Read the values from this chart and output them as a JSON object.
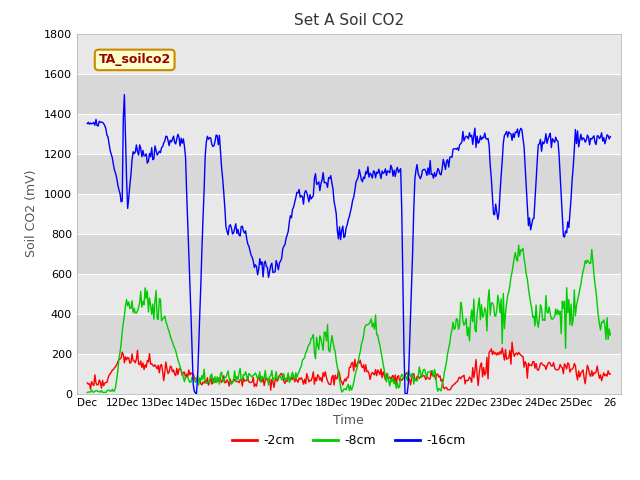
{
  "title": "Set A Soil CO2",
  "ylabel": "Soil CO2 (mV)",
  "xlabel": "Time",
  "legend_label": "TA_soilco2",
  "series_labels": [
    "-2cm",
    "-8cm",
    "-16cm"
  ],
  "series_colors": [
    "#ff0000",
    "#00cc00",
    "#0000ff"
  ],
  "ylim": [
    0,
    1800
  ],
  "background_color": "#ffffff",
  "plot_bg_color": "#ffffff",
  "band_colors": [
    "#e8e8e8",
    "#d8d8d8"
  ],
  "title_fontsize": 11,
  "axis_fontsize": 9,
  "tick_labels": [
    "Dec",
    "12Dec",
    "13Dec",
    "14Dec",
    "15Dec",
    "16Dec",
    "17Dec",
    "18Dec",
    "19Dec",
    "20Dec",
    "21Dec",
    "22Dec",
    "23Dec",
    "24Dec",
    "25Dec",
    "26"
  ],
  "yticks": [
    0,
    200,
    400,
    600,
    800,
    1000,
    1200,
    1400,
    1600,
    1800
  ]
}
